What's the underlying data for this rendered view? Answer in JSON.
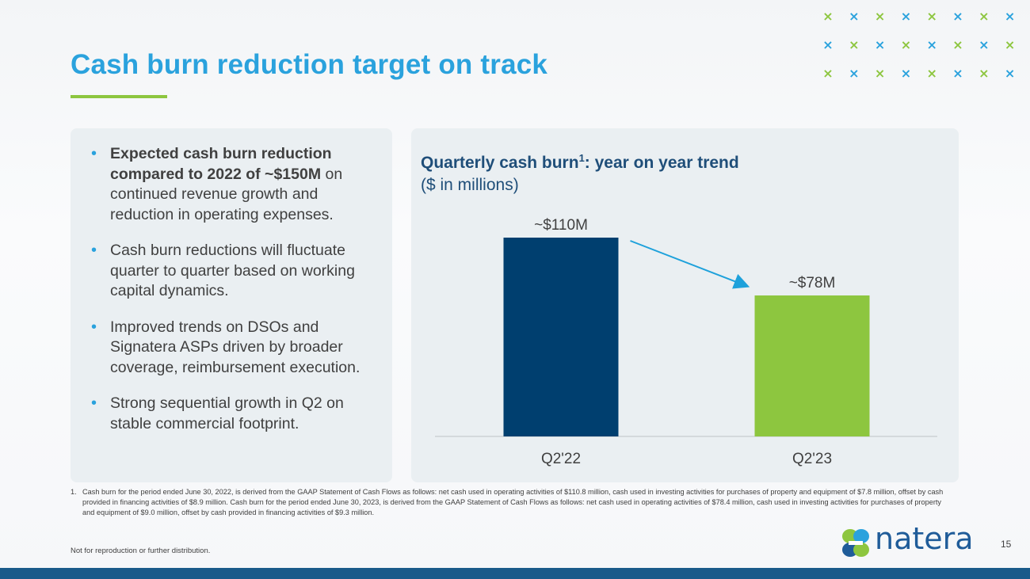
{
  "slide": {
    "title": "Cash burn reduction target on track",
    "page_number": "15",
    "disclaimer": "Not for reproduction or further distribution.",
    "logo_text": "natera"
  },
  "bullets": [
    {
      "bold": "Expected cash burn reduction compared to 2022 of ~$150M",
      "text": " on continued revenue growth and reduction in operating expenses."
    },
    {
      "bold": "",
      "text": "Cash burn reductions will fluctuate quarter to quarter based on working capital dynamics."
    },
    {
      "bold": "",
      "text": "Improved trends on DSOs and Signatera ASPs driven by broader coverage, reimbursement execution."
    },
    {
      "bold": "",
      "text": "Strong sequential growth in Q2 on stable commercial footprint."
    }
  ],
  "footnote": {
    "number": "1.",
    "text": "Cash burn for the period ended June 30, 2022, is derived from the GAAP Statement of Cash Flows as follows: net cash used in operating activities of $110.8 million,  cash used in investing activities for purchases of property and equipment of $7.8 million, offset by cash provided in financing activities of $8.9 million. Cash burn for the period ended June 30, 2023, is derived from  the GAAP Statement of Cash Flows as follows: net cash used in operating activities of $78.4 million,  cash used in investing activities for purchases of property and equipment of $9.0 million, offset by cash provided in financing activities of $9.3 million."
  },
  "colors": {
    "title_blue": "#2aa2dd",
    "accent_green": "#8dc63f",
    "dark_blue": "#003f6f",
    "bar_green": "#8dc63f",
    "arrow_blue": "#1ea1db"
  },
  "chart_data": {
    "type": "bar",
    "title": "Quarterly cash burn",
    "title_superscript": "1",
    "title_suffix": ": year on year trend",
    "subtitle": "($ in millions)",
    "categories": [
      "Q2'22",
      "Q2'23"
    ],
    "values": [
      110,
      78
    ],
    "data_labels": [
      "~$110M",
      "~$78M"
    ],
    "bar_colors": [
      "#003f6f",
      "#8dc63f"
    ],
    "ylim": [
      0,
      110
    ],
    "grid": false,
    "legend": "none",
    "annotation": "arrow from Q2'22 bar to Q2'23 bar"
  }
}
